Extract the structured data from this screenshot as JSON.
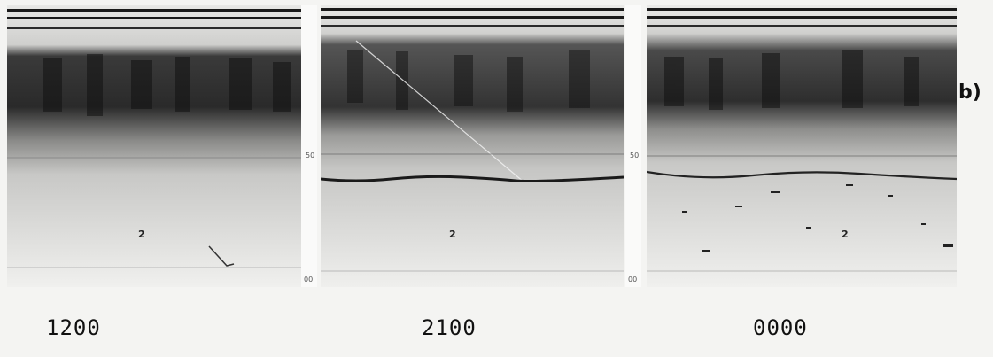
{
  "panels": [
    {
      "time_label": "1200",
      "tick_mark": "2",
      "scale_mid": "50",
      "scale_end": "00"
    },
    {
      "time_label": "2100",
      "tick_mark": "2",
      "scale_mid": "50",
      "scale_end": "00"
    },
    {
      "time_label": "0000",
      "tick_mark": "2",
      "scale_mid": "50",
      "scale_end": "00"
    }
  ],
  "panel_letter": "b)"
}
